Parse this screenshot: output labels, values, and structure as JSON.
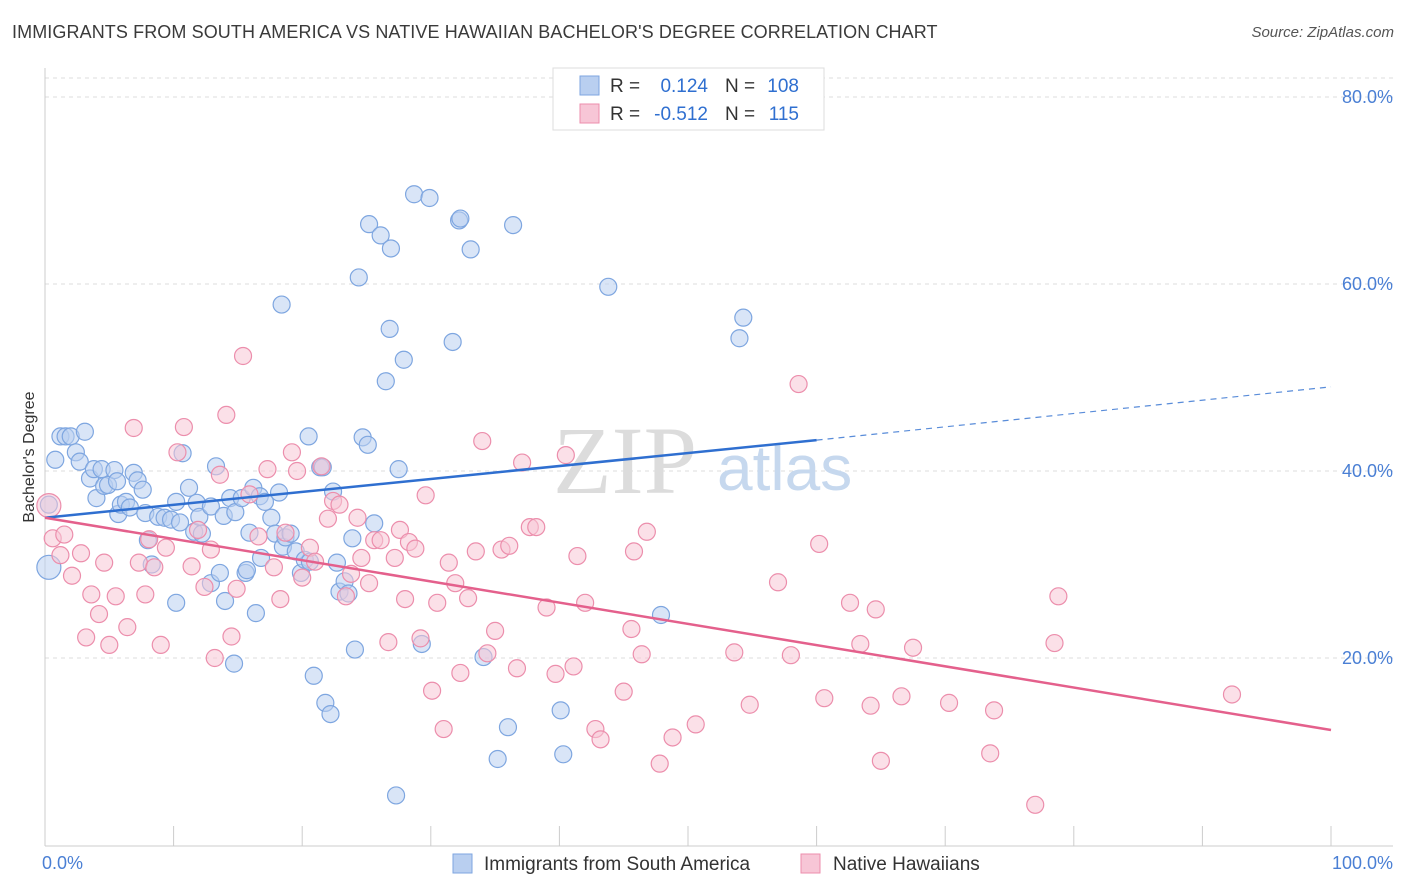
{
  "chart_data": {
    "type": "scatter",
    "title": "IMMIGRANTS FROM SOUTH AMERICA VS NATIVE HAWAIIAN BACHELOR'S DEGREE CORRELATION CHART",
    "source": "Source: ZipAtlas.com",
    "xlabel": "",
    "ylabel": "Bachelor's Degree",
    "xlim": [
      0,
      100
    ],
    "ylim": [
      0,
      80
    ],
    "x_tick_labels": [
      "0.0%",
      "100.0%"
    ],
    "y_ticks": [
      20,
      40,
      60,
      80
    ],
    "y_tick_labels": [
      "20.0%",
      "40.0%",
      "60.0%",
      "80.0%"
    ],
    "watermark": {
      "zip": "ZIP",
      "atlas": "atlas"
    },
    "legend_box": [
      {
        "r_label": "R = ",
        "r_value": "0.124",
        "n_label": "N = ",
        "n_value": "108"
      },
      {
        "r_label": "R = ",
        "r_value": "-0.512",
        "n_label": "N = ",
        "n_value": "115"
      }
    ],
    "colors": {
      "blue_fill": "#b9cff0",
      "blue_stroke": "#7ea6e0",
      "blue_line": "#2f6fd0",
      "pink_fill": "#f7c6d6",
      "pink_stroke": "#ec8eac",
      "pink_line": "#e4608c",
      "value_text": "#2f6fd0",
      "axis_text": "#4a7fd4",
      "grid": "#dddddd"
    },
    "series": [
      {
        "name": "Immigrants from South America",
        "color": "blue",
        "trend": {
          "x0": 0,
          "y0": 35.0,
          "x1": 60,
          "y1": 43.3,
          "x_dash_end": 100,
          "y_dash_end": 49.0
        },
        "points": [
          [
            0.3,
            29.7
          ],
          [
            0.3,
            36.4
          ],
          [
            0.8,
            41.2
          ],
          [
            1.2,
            43.7
          ],
          [
            1.6,
            43.7
          ],
          [
            2.0,
            43.7
          ],
          [
            2.4,
            42.0
          ],
          [
            2.7,
            41.0
          ],
          [
            3.1,
            44.2
          ],
          [
            3.5,
            39.2
          ],
          [
            3.8,
            40.2
          ],
          [
            4.0,
            37.1
          ],
          [
            4.4,
            40.2
          ],
          [
            4.6,
            38.4
          ],
          [
            4.9,
            38.5
          ],
          [
            5.4,
            40.1
          ],
          [
            5.6,
            38.9
          ],
          [
            5.7,
            35.4
          ],
          [
            5.9,
            36.4
          ],
          [
            6.3,
            36.7
          ],
          [
            6.6,
            36.1
          ],
          [
            6.9,
            39.8
          ],
          [
            7.2,
            39.0
          ],
          [
            7.6,
            38.0
          ],
          [
            7.8,
            35.5
          ],
          [
            8.0,
            32.6
          ],
          [
            8.3,
            30.0
          ],
          [
            8.8,
            35.1
          ],
          [
            9.3,
            35.0
          ],
          [
            9.8,
            34.8
          ],
          [
            10.2,
            36.7
          ],
          [
            10.5,
            34.5
          ],
          [
            10.2,
            25.9
          ],
          [
            10.7,
            41.9
          ],
          [
            11.2,
            38.2
          ],
          [
            11.8,
            36.6
          ],
          [
            11.6,
            33.5
          ],
          [
            12.2,
            33.3
          ],
          [
            12.0,
            35.1
          ],
          [
            12.9,
            36.2
          ],
          [
            12.9,
            28.0
          ],
          [
            13.3,
            40.5
          ],
          [
            13.6,
            29.1
          ],
          [
            13.9,
            35.2
          ],
          [
            14.0,
            26.1
          ],
          [
            14.4,
            37.1
          ],
          [
            14.8,
            35.6
          ],
          [
            14.7,
            19.4
          ],
          [
            15.3,
            37.1
          ],
          [
            15.6,
            29.1
          ],
          [
            15.7,
            29.4
          ],
          [
            15.9,
            33.4
          ],
          [
            16.2,
            38.2
          ],
          [
            16.4,
            24.8
          ],
          [
            16.8,
            30.7
          ],
          [
            16.7,
            37.3
          ],
          [
            17.1,
            36.7
          ],
          [
            17.6,
            35.0
          ],
          [
            17.9,
            33.3
          ],
          [
            18.2,
            37.7
          ],
          [
            18.5,
            31.9
          ],
          [
            18.7,
            32.9
          ],
          [
            18.4,
            57.8
          ],
          [
            19.1,
            33.3
          ],
          [
            19.5,
            31.4
          ],
          [
            19.9,
            29.1
          ],
          [
            20.2,
            30.5
          ],
          [
            20.5,
            43.7
          ],
          [
            20.6,
            30.3
          ],
          [
            20.9,
            18.1
          ],
          [
            21.4,
            40.4
          ],
          [
            21.6,
            40.4
          ],
          [
            21.8,
            15.2
          ],
          [
            22.2,
            14.0
          ],
          [
            22.4,
            37.8
          ],
          [
            22.7,
            30.2
          ],
          [
            22.9,
            27.1
          ],
          [
            23.3,
            28.2
          ],
          [
            23.6,
            26.9
          ],
          [
            23.9,
            32.8
          ],
          [
            24.1,
            20.9
          ],
          [
            24.4,
            60.7
          ],
          [
            24.7,
            43.6
          ],
          [
            25.1,
            42.8
          ],
          [
            25.6,
            34.4
          ],
          [
            25.2,
            66.4
          ],
          [
            26.1,
            65.2
          ],
          [
            26.5,
            49.6
          ],
          [
            26.8,
            55.2
          ],
          [
            26.9,
            63.8
          ],
          [
            27.3,
            5.3
          ],
          [
            27.5,
            40.2
          ],
          [
            27.9,
            51.9
          ],
          [
            28.7,
            69.6
          ],
          [
            29.3,
            21.5
          ],
          [
            29.9,
            69.2
          ],
          [
            31.7,
            53.8
          ],
          [
            32.2,
            66.8
          ],
          [
            32.3,
            67.0
          ],
          [
            33.1,
            63.7
          ],
          [
            34.1,
            20.1
          ],
          [
            35.2,
            9.2
          ],
          [
            36.0,
            12.6
          ],
          [
            36.4,
            66.3
          ],
          [
            40.1,
            14.4
          ],
          [
            40.3,
            9.7
          ],
          [
            43.8,
            59.7
          ],
          [
            47.9,
            24.6
          ],
          [
            54.0,
            54.2
          ],
          [
            54.3,
            56.4
          ]
        ]
      },
      {
        "name": "Native Hawaiians",
        "color": "pink",
        "trend": {
          "x0": 0,
          "y0": 35.0,
          "x1": 100,
          "y1": 12.3
        },
        "points": [
          [
            0.3,
            36.3
          ],
          [
            0.6,
            32.8
          ],
          [
            1.2,
            31.0
          ],
          [
            1.5,
            33.2
          ],
          [
            2.1,
            28.8
          ],
          [
            2.8,
            31.2
          ],
          [
            3.2,
            22.2
          ],
          [
            3.6,
            26.8
          ],
          [
            4.2,
            24.7
          ],
          [
            4.6,
            30.2
          ],
          [
            5.0,
            21.4
          ],
          [
            5.5,
            26.6
          ],
          [
            6.4,
            23.3
          ],
          [
            6.9,
            44.6
          ],
          [
            7.3,
            30.2
          ],
          [
            7.8,
            26.8
          ],
          [
            8.1,
            32.7
          ],
          [
            8.5,
            29.7
          ],
          [
            9.0,
            21.4
          ],
          [
            9.4,
            31.8
          ],
          [
            10.3,
            42.0
          ],
          [
            10.8,
            44.7
          ],
          [
            11.4,
            29.8
          ],
          [
            11.9,
            33.7
          ],
          [
            12.4,
            27.6
          ],
          [
            12.9,
            31.6
          ],
          [
            13.2,
            20.0
          ],
          [
            13.6,
            39.6
          ],
          [
            14.1,
            46.0
          ],
          [
            14.5,
            22.3
          ],
          [
            14.9,
            27.4
          ],
          [
            15.4,
            52.3
          ],
          [
            15.9,
            37.5
          ],
          [
            16.6,
            33.0
          ],
          [
            17.3,
            40.2
          ],
          [
            17.8,
            29.7
          ],
          [
            18.3,
            26.3
          ],
          [
            18.7,
            33.4
          ],
          [
            19.2,
            42.0
          ],
          [
            19.6,
            40.0
          ],
          [
            20.0,
            28.6
          ],
          [
            20.6,
            31.8
          ],
          [
            21.0,
            30.3
          ],
          [
            21.5,
            40.5
          ],
          [
            22.0,
            34.9
          ],
          [
            22.4,
            36.8
          ],
          [
            22.9,
            36.4
          ],
          [
            23.4,
            26.6
          ],
          [
            23.8,
            29.0
          ],
          [
            24.3,
            35.0
          ],
          [
            24.6,
            30.7
          ],
          [
            25.2,
            28.0
          ],
          [
            25.6,
            32.6
          ],
          [
            26.1,
            32.6
          ],
          [
            26.7,
            21.7
          ],
          [
            27.2,
            30.7
          ],
          [
            27.6,
            33.7
          ],
          [
            28.0,
            26.3
          ],
          [
            28.3,
            32.4
          ],
          [
            28.8,
            31.7
          ],
          [
            29.2,
            22.1
          ],
          [
            29.6,
            37.4
          ],
          [
            30.1,
            16.5
          ],
          [
            30.5,
            25.9
          ],
          [
            31.0,
            12.4
          ],
          [
            31.4,
            30.2
          ],
          [
            31.9,
            28.0
          ],
          [
            32.3,
            18.4
          ],
          [
            32.9,
            26.4
          ],
          [
            33.5,
            31.4
          ],
          [
            34.0,
            43.2
          ],
          [
            34.4,
            20.5
          ],
          [
            35.0,
            22.9
          ],
          [
            35.5,
            31.6
          ],
          [
            36.1,
            32.0
          ],
          [
            36.7,
            18.9
          ],
          [
            37.1,
            40.9
          ],
          [
            37.7,
            34.0
          ],
          [
            38.2,
            34.0
          ],
          [
            39.0,
            25.4
          ],
          [
            39.7,
            18.3
          ],
          [
            40.5,
            41.7
          ],
          [
            41.1,
            19.1
          ],
          [
            41.4,
            30.9
          ],
          [
            42.0,
            25.9
          ],
          [
            42.8,
            12.4
          ],
          [
            43.2,
            11.3
          ],
          [
            45.0,
            16.4
          ],
          [
            45.6,
            23.1
          ],
          [
            45.8,
            31.4
          ],
          [
            46.4,
            20.4
          ],
          [
            46.8,
            33.5
          ],
          [
            47.8,
            8.7
          ],
          [
            48.8,
            11.5
          ],
          [
            50.6,
            12.9
          ],
          [
            53.6,
            20.6
          ],
          [
            54.8,
            15.0
          ],
          [
            57.0,
            28.1
          ],
          [
            58.0,
            20.3
          ],
          [
            58.6,
            49.3
          ],
          [
            60.2,
            32.2
          ],
          [
            60.6,
            15.7
          ],
          [
            62.6,
            25.9
          ],
          [
            63.4,
            21.5
          ],
          [
            64.2,
            14.9
          ],
          [
            64.6,
            25.2
          ],
          [
            65.0,
            9.0
          ],
          [
            66.6,
            15.9
          ],
          [
            67.5,
            21.1
          ],
          [
            70.3,
            15.2
          ],
          [
            73.5,
            9.8
          ],
          [
            73.8,
            14.4
          ],
          [
            77.0,
            4.3
          ],
          [
            78.5,
            21.6
          ],
          [
            78.8,
            26.6
          ],
          [
            92.3,
            16.1
          ]
        ]
      }
    ]
  }
}
